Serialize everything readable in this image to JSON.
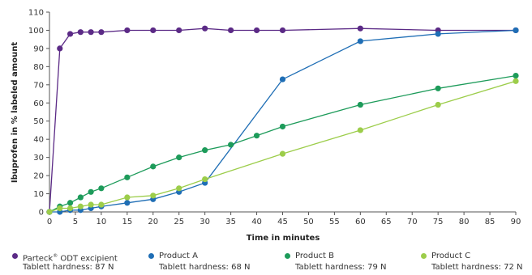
{
  "chart_data": {
    "type": "line",
    "title": "",
    "xlabel": "Time in minutes",
    "ylabel": "Ibuprofen in % labeled amount",
    "xlim": [
      0,
      90
    ],
    "ylim": [
      0,
      110
    ],
    "xticks": [
      0,
      5,
      10,
      15,
      20,
      25,
      30,
      35,
      40,
      45,
      50,
      55,
      60,
      65,
      70,
      75,
      80,
      85,
      90
    ],
    "yticks": [
      0,
      10,
      20,
      30,
      40,
      50,
      60,
      70,
      80,
      90,
      100,
      110
    ],
    "grid": false,
    "legend_position": "bottom",
    "series": [
      {
        "name": "Parteck® ODT excipient",
        "subtitle": "Tablett hardness: 87 N",
        "color": "#5b2a86",
        "x": [
          0,
          2,
          4,
          6,
          8,
          10,
          15,
          20,
          25,
          30,
          35,
          40,
          45,
          60,
          75,
          90
        ],
        "y": [
          0,
          90,
          98,
          99,
          99,
          99,
          100,
          100,
          100,
          101,
          100,
          100,
          100,
          101,
          100,
          100
        ]
      },
      {
        "name": "Product A",
        "subtitle": "Tablett hardness: 68 N",
        "color": "#1f6eb5",
        "x": [
          0,
          2,
          4,
          6,
          8,
          10,
          15,
          20,
          25,
          30,
          45,
          60,
          75,
          90
        ],
        "y": [
          0,
          0,
          1,
          1,
          2,
          3,
          5,
          7,
          11,
          16,
          73,
          94,
          98,
          100
        ]
      },
      {
        "name": "Product B",
        "subtitle": "Tablett hardness: 79 N",
        "color": "#1d9b5a",
        "x": [
          0,
          2,
          4,
          6,
          8,
          10,
          15,
          20,
          25,
          30,
          35,
          40,
          45,
          60,
          75,
          90
        ],
        "y": [
          0,
          3,
          5,
          8,
          11,
          13,
          19,
          25,
          30,
          34,
          37,
          42,
          47,
          59,
          68,
          75
        ]
      },
      {
        "name": "Product C",
        "subtitle": "Tablett hardness: 72 N",
        "color": "#9ccd4a",
        "x": [
          0,
          2,
          4,
          6,
          8,
          10,
          15,
          20,
          25,
          30,
          45,
          60,
          75,
          90
        ],
        "y": [
          0,
          2,
          2,
          3,
          4,
          4,
          8,
          9,
          13,
          18,
          32,
          45,
          59,
          72
        ]
      }
    ]
  }
}
